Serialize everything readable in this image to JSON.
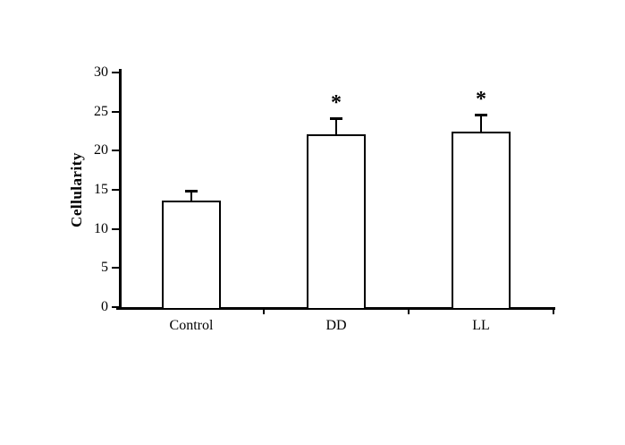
{
  "figure": {
    "background_color": "#ffffff",
    "ink_color": "#000000"
  },
  "chart_data": {
    "type": "bar",
    "title": "",
    "xlabel": "",
    "ylabel": "Cellularity",
    "categories": [
      "Control",
      "DD",
      "LL"
    ],
    "values": [
      13.6,
      22.1,
      22.4
    ],
    "errors": [
      1.3,
      2.1,
      2.2
    ],
    "significance_markers": [
      "",
      "*",
      "*"
    ],
    "yticks": [
      0,
      5,
      10,
      15,
      20,
      25,
      30
    ],
    "ylim": [
      0,
      30
    ],
    "bar_fill": "#ffffff",
    "bar_border": "#000000",
    "error_bar_color": "#000000",
    "grid": false,
    "legend": false
  }
}
